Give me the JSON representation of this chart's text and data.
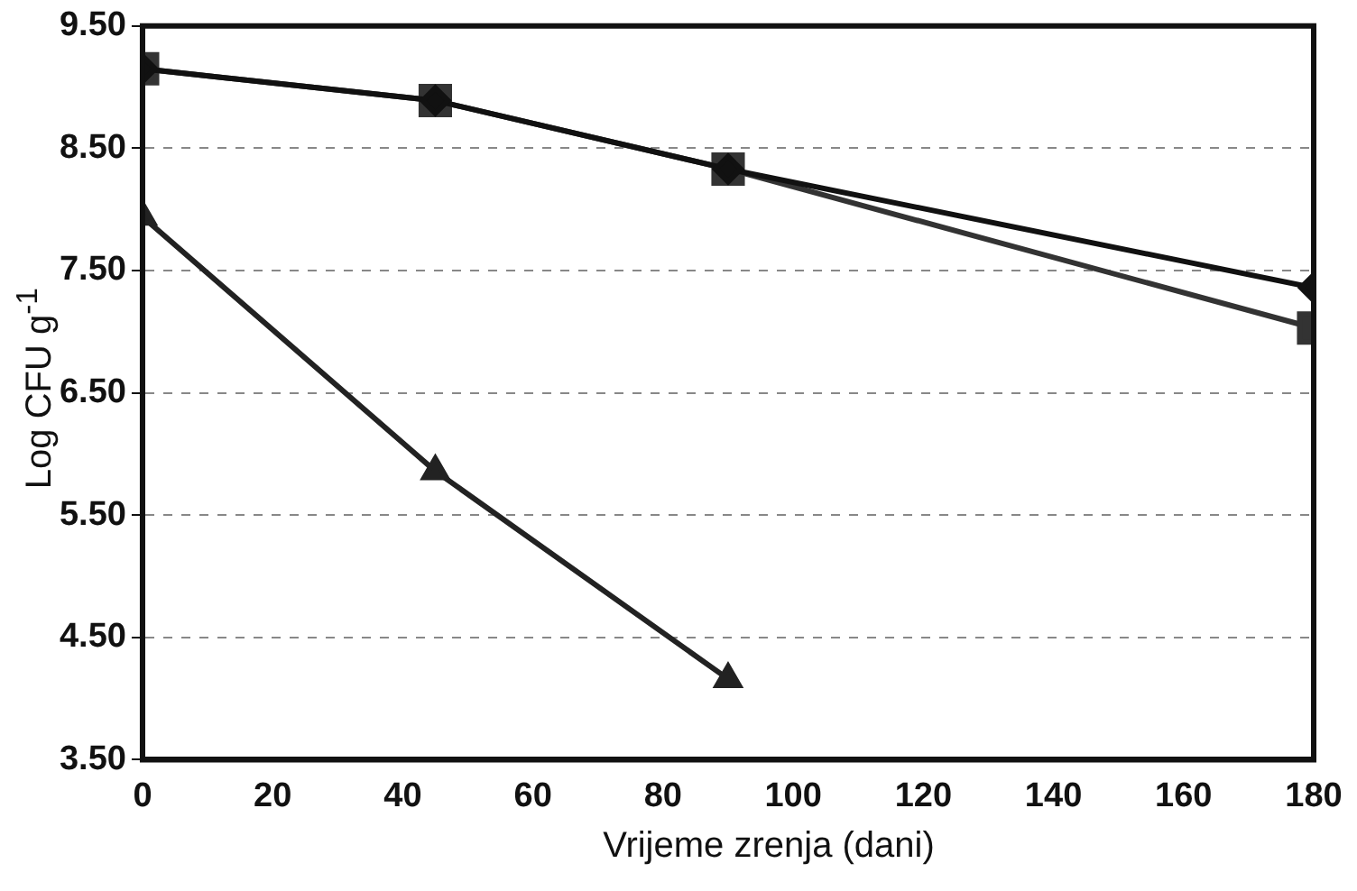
{
  "chart_data": {
    "type": "line",
    "xlabel": "Vrijeme zrenja (dani)",
    "ylabel": "Log CFU g$^{-1}$",
    "x": [
      0,
      45,
      90,
      180
    ],
    "series": [
      {
        "color": "#111111",
        "values": [
          9.15,
          8.89,
          8.33,
          7.36
        ],
        "marker": "diamond"
      },
      {
        "color": "#333333",
        "values": [
          9.15,
          8.89,
          8.33,
          7.03
        ],
        "marker": "square"
      },
      {
        "color": "#222222",
        "values": [
          7.94,
          5.86,
          4.16,
          null
        ],
        "marker": "triangle"
      }
    ],
    "xlim": [
      0,
      180
    ],
    "xticks": [
      0,
      20,
      40,
      60,
      80,
      100,
      120,
      140,
      160,
      180
    ],
    "ylim": [
      3.5,
      9.5
    ],
    "yticks": [
      {
        "value": 3.5,
        "label": "3.50"
      },
      {
        "value": 4.5,
        "label": "4.50"
      },
      {
        "value": 5.5,
        "label": "5.50"
      },
      {
        "value": 6.5,
        "label": "6.50"
      },
      {
        "value": 7.5,
        "label": "7.50"
      },
      {
        "value": 8.5,
        "label": "8.50"
      },
      {
        "value": 9.5,
        "label": "9.50"
      }
    ],
    "grid": "y",
    "legend": false,
    "line_style": "solid"
  }
}
